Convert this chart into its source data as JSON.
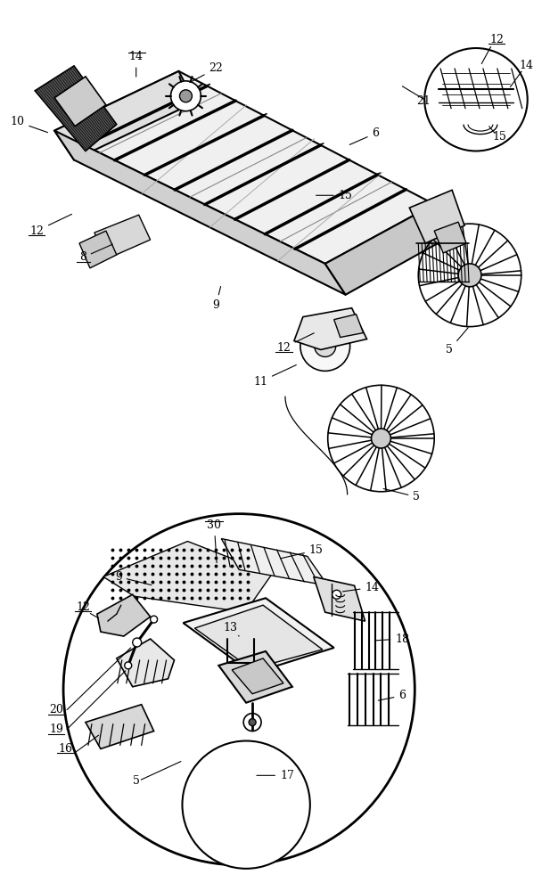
{
  "bg_color": "#ffffff",
  "line_color": "#000000",
  "fig_width": 6.17,
  "fig_height": 10.0,
  "labels": {
    "5": "5",
    "6": "6",
    "8": "8",
    "9": "9",
    "10": "10",
    "11": "11",
    "12": "12",
    "13": "13",
    "14": "14",
    "15": "15",
    "16": "16",
    "17": "17",
    "18": "18",
    "19": "19",
    "20": "20",
    "21": "21",
    "22": "22",
    "30": "30"
  }
}
